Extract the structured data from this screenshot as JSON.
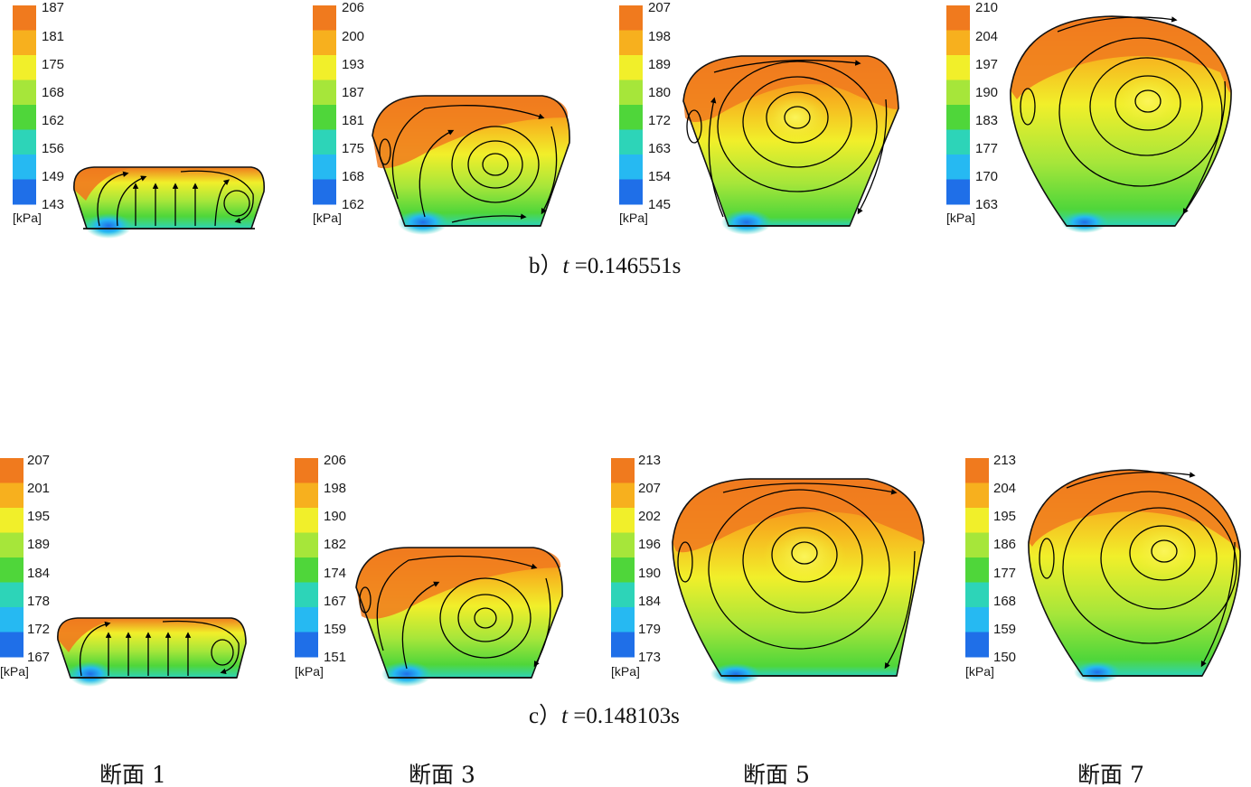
{
  "colors": [
    "#1f6fe8",
    "#26b9f2",
    "#2dd4b8",
    "#4fd63a",
    "#a6e63a",
    "#f1ef2a",
    "#f7b01e",
    "#f07a1e"
  ],
  "column_labels": [
    "断面 1",
    "断面 3",
    "断面 5",
    "断面 7"
  ],
  "unit": "[kPa]",
  "rows": [
    {
      "caption": {
        "prefix": "b）",
        "var": "t",
        "value": " =0.146551s"
      },
      "panels": [
        {
          "ticks": [
            "187",
            "181",
            "175",
            "168",
            "162",
            "156",
            "149",
            "143"
          ]
        },
        {
          "ticks": [
            "206",
            "200",
            "193",
            "187",
            "181",
            "175",
            "168",
            "162"
          ]
        },
        {
          "ticks": [
            "207",
            "198",
            "189",
            "180",
            "172",
            "163",
            "154",
            "145"
          ]
        },
        {
          "ticks": [
            "210",
            "204",
            "197",
            "190",
            "183",
            "177",
            "170",
            "163"
          ]
        }
      ]
    },
    {
      "caption": {
        "prefix": "c）",
        "var": "t",
        "value": " =0.148103s"
      },
      "panels": [
        {
          "ticks": [
            "207",
            "201",
            "195",
            "189",
            "184",
            "178",
            "172",
            "167"
          ]
        },
        {
          "ticks": [
            "206",
            "198",
            "190",
            "182",
            "174",
            "167",
            "159",
            "151"
          ]
        },
        {
          "ticks": [
            "213",
            "207",
            "202",
            "196",
            "190",
            "184",
            "179",
            "173"
          ]
        },
        {
          "ticks": [
            "213",
            "204",
            "195",
            "186",
            "177",
            "168",
            "159",
            "150"
          ]
        }
      ]
    }
  ]
}
